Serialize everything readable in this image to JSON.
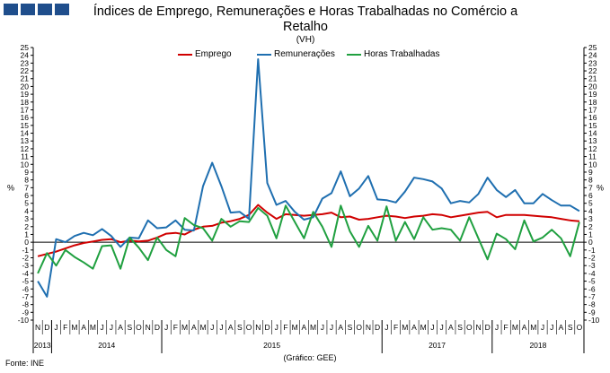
{
  "header": {
    "title": "Índices de Emprego, Remunerações e Horas Trabalhadas no Comércio a Retalho",
    "subtitle": "(VH)"
  },
  "footer": {
    "source": "Fonte: INE",
    "credit": "(Gráfico: GEE)"
  },
  "colors": {
    "logo": "#1f4e8c",
    "emprego": "#d00000",
    "remuneracoes": "#1f6fb0",
    "horas": "#20a040"
  },
  "chart_data": {
    "type": "line",
    "ylabel_left": "%",
    "ylabel_right": "%",
    "ylim": [
      -10,
      25
    ],
    "yticks": [
      -10,
      -9,
      -8,
      -7,
      -6,
      -5,
      -4,
      -3,
      -2,
      -1,
      0,
      1,
      2,
      3,
      4,
      5,
      6,
      7,
      8,
      9,
      10,
      11,
      12,
      13,
      14,
      15,
      16,
      17,
      18,
      19,
      20,
      21,
      22,
      23,
      24,
      25
    ],
    "grid": false,
    "legend_position": "top-center",
    "months": [
      "N",
      "D",
      "J",
      "F",
      "M",
      "A",
      "M",
      "J",
      "J",
      "A",
      "S",
      "O",
      "N",
      "D",
      "J",
      "F",
      "M",
      "A",
      "M",
      "J",
      "J",
      "A",
      "S",
      "O",
      "N",
      "D",
      "J",
      "F",
      "M",
      "A",
      "M",
      "J",
      "J",
      "A",
      "S",
      "O",
      "N",
      "D",
      "J",
      "F",
      "M",
      "A",
      "M",
      "J",
      "J",
      "A",
      "S",
      "O",
      "N",
      "D",
      "J",
      "F",
      "M",
      "A",
      "M",
      "J",
      "J",
      "A",
      "S",
      "O"
    ],
    "years": [
      {
        "label": "2013",
        "start": 0,
        "end": 1
      },
      {
        "label": "2014",
        "start": 2,
        "end": 13
      },
      {
        "label": "2015",
        "start": 14,
        "end": 37
      },
      {
        "label": "2017",
        "start": 38,
        "end": 49
      },
      {
        "label": "2018",
        "start": 50,
        "end": 59
      }
    ],
    "series": [
      {
        "name": "Emprego",
        "color": "#d00000",
        "values": [
          -1.8,
          -1.5,
          -1.2,
          -0.8,
          -0.4,
          -0.1,
          0.1,
          0.3,
          0.4,
          0.0,
          0.2,
          0.1,
          0.2,
          0.6,
          1.1,
          1.2,
          1.0,
          1.6,
          2.0,
          2.1,
          2.5,
          2.7,
          3.0,
          3.5,
          4.8,
          3.8,
          3.0,
          3.6,
          3.5,
          3.4,
          3.5,
          3.6,
          3.8,
          3.2,
          3.3,
          2.9,
          3.0,
          3.2,
          3.4,
          3.3,
          3.1,
          3.3,
          3.4,
          3.6,
          3.5,
          3.2,
          3.4,
          3.6,
          3.8,
          3.9,
          3.2,
          3.5,
          3.5,
          3.5,
          3.4,
          3.3,
          3.2,
          3.0,
          2.8,
          2.7
        ]
      },
      {
        "name": "Remunerações",
        "color": "#1f6fb0",
        "values": [
          -5.0,
          -7.0,
          0.4,
          0.0,
          0.8,
          1.2,
          0.9,
          1.7,
          0.8,
          -0.6,
          0.6,
          0.5,
          2.8,
          1.8,
          1.9,
          2.8,
          1.6,
          1.5,
          7.2,
          10.2,
          7.2,
          3.8,
          3.9,
          3.0,
          23.5,
          7.6,
          4.8,
          5.3,
          3.9,
          2.9,
          3.2,
          5.6,
          6.3,
          9.1,
          5.9,
          6.9,
          8.5,
          5.5,
          5.4,
          5.1,
          6.5,
          8.3,
          8.1,
          7.8,
          6.9,
          5.0,
          5.3,
          5.1,
          6.2,
          8.3,
          6.7,
          5.8,
          6.7,
          5.0,
          5.0,
          6.2,
          5.4,
          4.7,
          4.7,
          4.0
        ]
      },
      {
        "name": "Horas Trabalhadas",
        "color": "#20a040",
        "values": [
          -4.0,
          -1.4,
          -3.0,
          -1.0,
          -1.9,
          -2.6,
          -3.4,
          -0.5,
          -0.4,
          -3.4,
          0.6,
          -0.7,
          -2.3,
          0.6,
          -1.0,
          -1.8,
          3.1,
          2.2,
          1.8,
          0.2,
          3.0,
          2.0,
          2.7,
          2.6,
          4.4,
          3.4,
          0.5,
          4.7,
          2.6,
          0.5,
          3.9,
          2.0,
          -0.6,
          4.7,
          1.4,
          -0.6,
          2.1,
          0.2,
          4.6,
          0.2,
          2.6,
          0.4,
          3.2,
          1.6,
          1.8,
          1.6,
          0.2,
          3.2,
          0.5,
          -2.2,
          1.1,
          0.4,
          -0.9,
          2.8,
          0.1,
          0.6,
          1.6,
          0.5,
          -1.8,
          2.6
        ]
      }
    ]
  }
}
